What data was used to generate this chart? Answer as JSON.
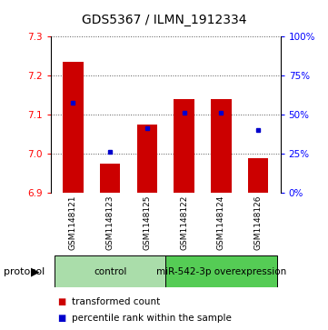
{
  "title": "GDS5367 / ILMN_1912334",
  "samples": [
    "GSM1148121",
    "GSM1148123",
    "GSM1148125",
    "GSM1148122",
    "GSM1148124",
    "GSM1148126"
  ],
  "red_values": [
    7.235,
    6.975,
    7.075,
    7.14,
    7.14,
    6.99
  ],
  "blue_values": [
    7.13,
    7.005,
    7.065,
    7.105,
    7.105,
    7.06
  ],
  "ylim_left": [
    6.9,
    7.3
  ],
  "yticks_left": [
    6.9,
    7.0,
    7.1,
    7.2,
    7.3
  ],
  "yticks_right": [
    0,
    25,
    50,
    75,
    100
  ],
  "ylim_right": [
    0,
    100
  ],
  "bar_bottom": 6.9,
  "bar_color": "#cc0000",
  "blue_color": "#0000cc",
  "protocol_groups": [
    {
      "label": "control",
      "indices": [
        0,
        1,
        2
      ],
      "color": "#aaddaa"
    },
    {
      "label": "miR-542-3p overexpression",
      "indices": [
        3,
        4,
        5
      ],
      "color": "#55cc55"
    }
  ],
  "legend_red_label": "transformed count",
  "legend_blue_label": "percentile rank within the sample",
  "sample_bg_color": "#cccccc",
  "grid_color": "#555555",
  "title_fontsize": 10,
  "tick_fontsize": 7.5,
  "sample_fontsize": 6.5,
  "proto_fontsize": 7.5,
  "legend_fontsize": 7.5
}
